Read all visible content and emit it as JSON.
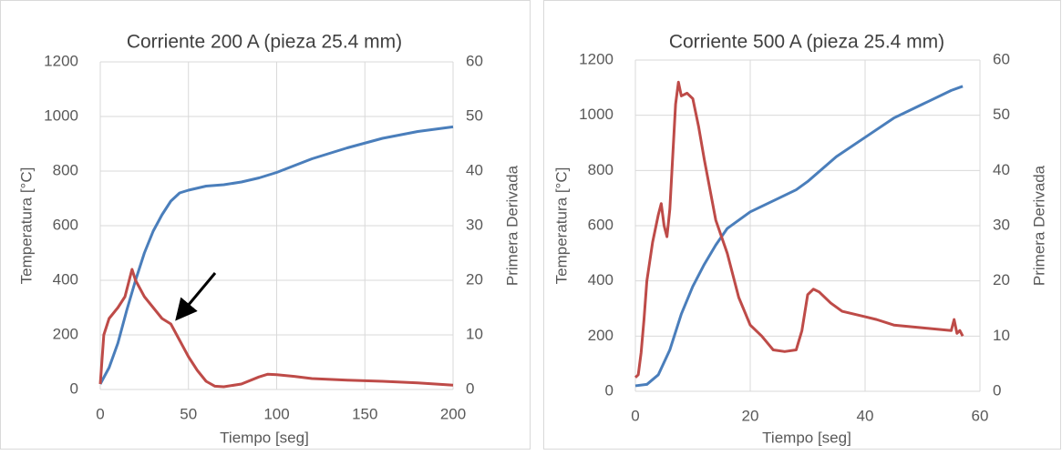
{
  "chart_data": [
    {
      "type": "line",
      "title": "Corriente 200 A (pieza 25.4 mm)",
      "x_label": "Tiempo [seg]",
      "y_label": "Temperatura [°C]",
      "y2_label": "Primera Derivada",
      "xlim": [
        0,
        200
      ],
      "xticks": [
        0,
        50,
        100,
        150,
        200
      ],
      "ylim": [
        0,
        1200
      ],
      "yticks": [
        0,
        200,
        400,
        600,
        800,
        1000,
        1200
      ],
      "y2lim": [
        0,
        60
      ],
      "y2ticks": [
        0,
        10,
        20,
        30,
        40,
        50,
        60
      ],
      "grid": true,
      "series": [
        {
          "color": "#4a7ebb",
          "x": [
            0,
            5,
            10,
            15,
            20,
            25,
            30,
            35,
            40,
            45,
            50,
            60,
            70,
            80,
            90,
            100,
            120,
            140,
            160,
            180,
            200
          ],
          "values": [
            20,
            80,
            170,
            290,
            400,
            500,
            580,
            640,
            690,
            720,
            730,
            745,
            750,
            760,
            775,
            795,
            845,
            885,
            920,
            945,
            962
          ]
        },
        {
          "color": "#be4b48",
          "axis": "y2",
          "x": [
            0,
            2,
            5,
            10,
            14,
            18,
            20,
            25,
            30,
            35,
            40,
            45,
            50,
            55,
            60,
            65,
            70,
            80,
            90,
            95,
            100,
            110,
            120,
            140,
            160,
            180,
            200
          ],
          "values": [
            1,
            10,
            13,
            15,
            17,
            22,
            20,
            17,
            15,
            13,
            12,
            9,
            6,
            3.5,
            1.5,
            0.6,
            0.5,
            1,
            2.3,
            2.8,
            2.7,
            2.4,
            2,
            1.7,
            1.5,
            1.2,
            0.8
          ]
        }
      ]
    },
    {
      "type": "line",
      "title": "Corriente 500 A (pieza 25.4 mm)",
      "x_label": "Tiempo [seg]",
      "y_label": "Temperatura [°C]",
      "y2_label": "Primera Derivada",
      "xlim": [
        0,
        60
      ],
      "xticks": [
        0,
        20,
        40,
        60
      ],
      "ylim": [
        0,
        1200
      ],
      "yticks": [
        0,
        200,
        400,
        600,
        800,
        1000,
        1200
      ],
      "y2lim": [
        0,
        60
      ],
      "y2ticks": [
        0,
        10,
        20,
        30,
        40,
        50,
        60
      ],
      "grid": true,
      "series": [
        {
          "color": "#4a7ebb",
          "x": [
            0,
            2,
            4,
            6,
            8,
            10,
            12,
            14,
            16,
            18,
            20,
            25,
            28,
            30,
            35,
            40,
            45,
            50,
            55,
            57
          ],
          "values": [
            20,
            25,
            60,
            150,
            280,
            380,
            460,
            530,
            590,
            620,
            650,
            700,
            730,
            760,
            850,
            920,
            990,
            1040,
            1090,
            1105
          ]
        },
        {
          "color": "#be4b48",
          "axis": "y2",
          "x": [
            0,
            0.5,
            1,
            1.5,
            2,
            3,
            4,
            4.5,
            5,
            5.5,
            6,
            7,
            7.5,
            8,
            9,
            10,
            11,
            12,
            14,
            16,
            18,
            20,
            22,
            24,
            26,
            28,
            29,
            30,
            31,
            32,
            34,
            36,
            40,
            42,
            45,
            50,
            55,
            55.5,
            56,
            56.5,
            57
          ],
          "values": [
            2.5,
            3,
            7,
            13,
            20,
            27,
            32,
            34,
            30,
            28,
            33,
            52,
            56,
            53.5,
            54,
            53,
            48,
            42,
            31,
            25,
            17,
            12,
            10,
            7.5,
            7.2,
            7.5,
            11,
            17.5,
            18.5,
            18,
            16,
            14.5,
            13.5,
            13,
            12,
            11.5,
            11,
            13,
            10.5,
            11,
            10
          ]
        }
      ]
    }
  ]
}
